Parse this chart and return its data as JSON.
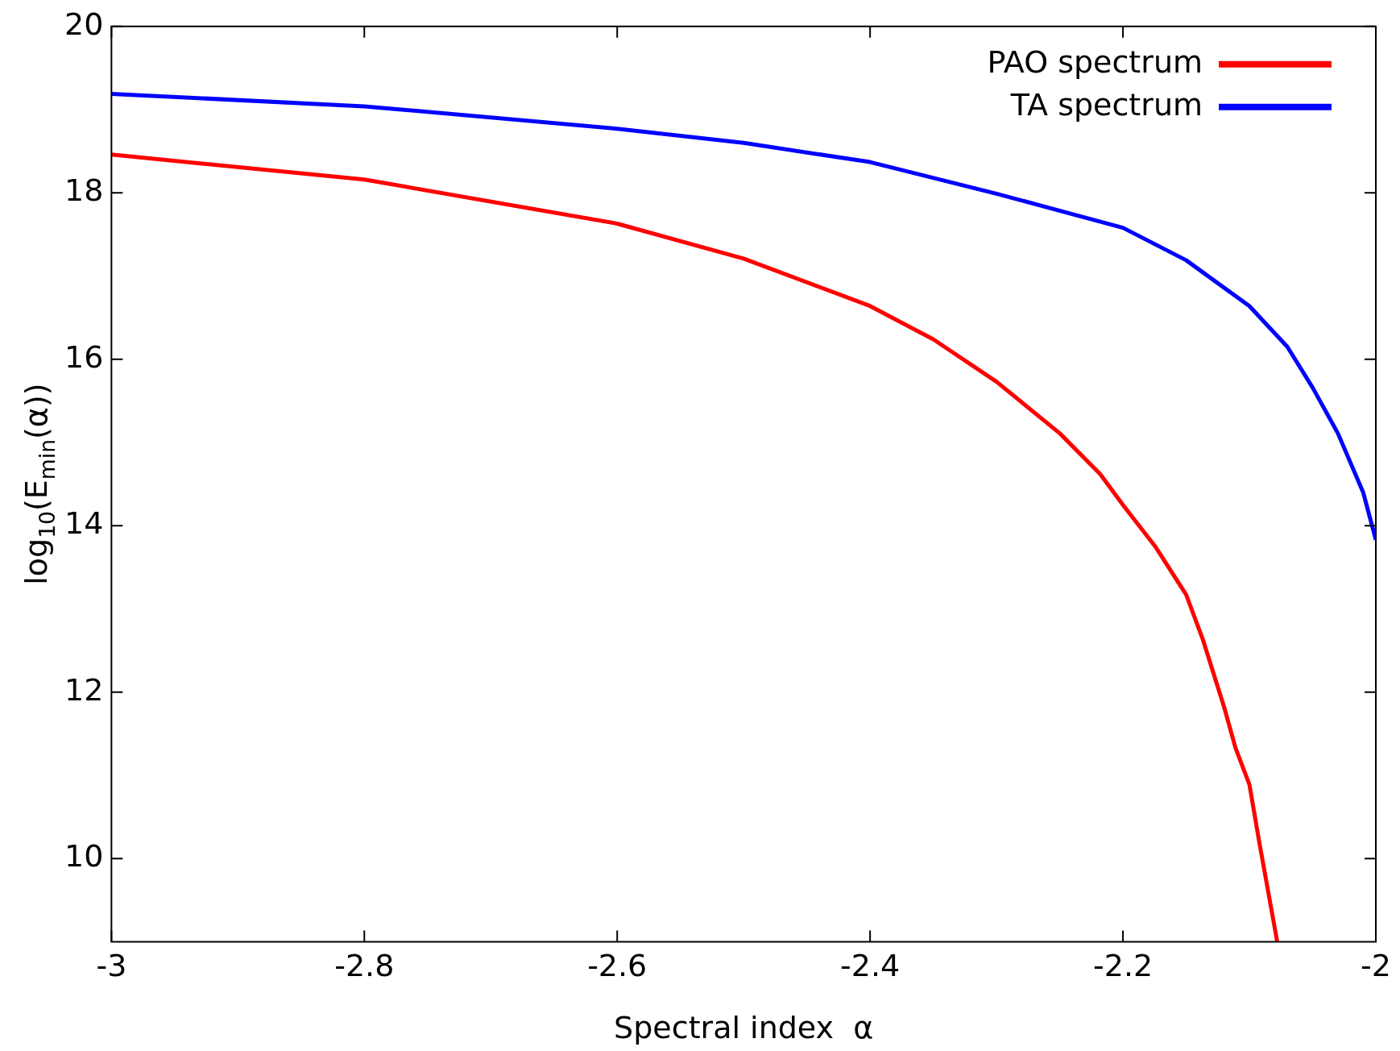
{
  "chart_data": {
    "type": "line",
    "xlabel": "Spectral index  α",
    "ylabel": "log$_{10}$(E$_{min}$(α))",
    "xlim": [
      -3,
      -2
    ],
    "ylim": [
      9,
      20
    ],
    "xticks": [
      -3,
      -2.8,
      -2.6,
      -2.4,
      -2.2,
      -2
    ],
    "yticks": [
      10,
      12,
      14,
      16,
      18,
      20
    ],
    "grid": false,
    "legend": "top right",
    "marker": "none",
    "line_style": "solid",
    "series": [
      {
        "name": "PAO spectrum",
        "color": "#ff0000",
        "x": [
          -3,
          -2.8,
          -2.6,
          -2.5,
          -2.4,
          -2.35,
          -2.3,
          -2.25,
          -2.218,
          -2.2,
          -2.174,
          -2.15,
          -2.137,
          -2.12,
          -2.111,
          -2.1,
          -2.092,
          -2.078
        ],
        "values": [
          18.46,
          18.16,
          17.63,
          17.21,
          16.64,
          16.24,
          15.73,
          15.11,
          14.62,
          14.25,
          13.74,
          13.17,
          12.64,
          11.82,
          11.33,
          10.89,
          10.18,
          9.0
        ]
      },
      {
        "name": "TA spectrum",
        "color": "#0000ff",
        "x": [
          -3,
          -2.8,
          -2.6,
          -2.5,
          -2.4,
          -2.3,
          -2.2,
          -2.15,
          -2.1,
          -2.07,
          -2.05,
          -2.03,
          -2.01,
          -2
        ],
        "values": [
          19.19,
          19.04,
          18.77,
          18.6,
          18.37,
          17.99,
          17.58,
          17.19,
          16.64,
          16.15,
          15.66,
          15.11,
          14.4,
          13.83
        ]
      }
    ]
  }
}
